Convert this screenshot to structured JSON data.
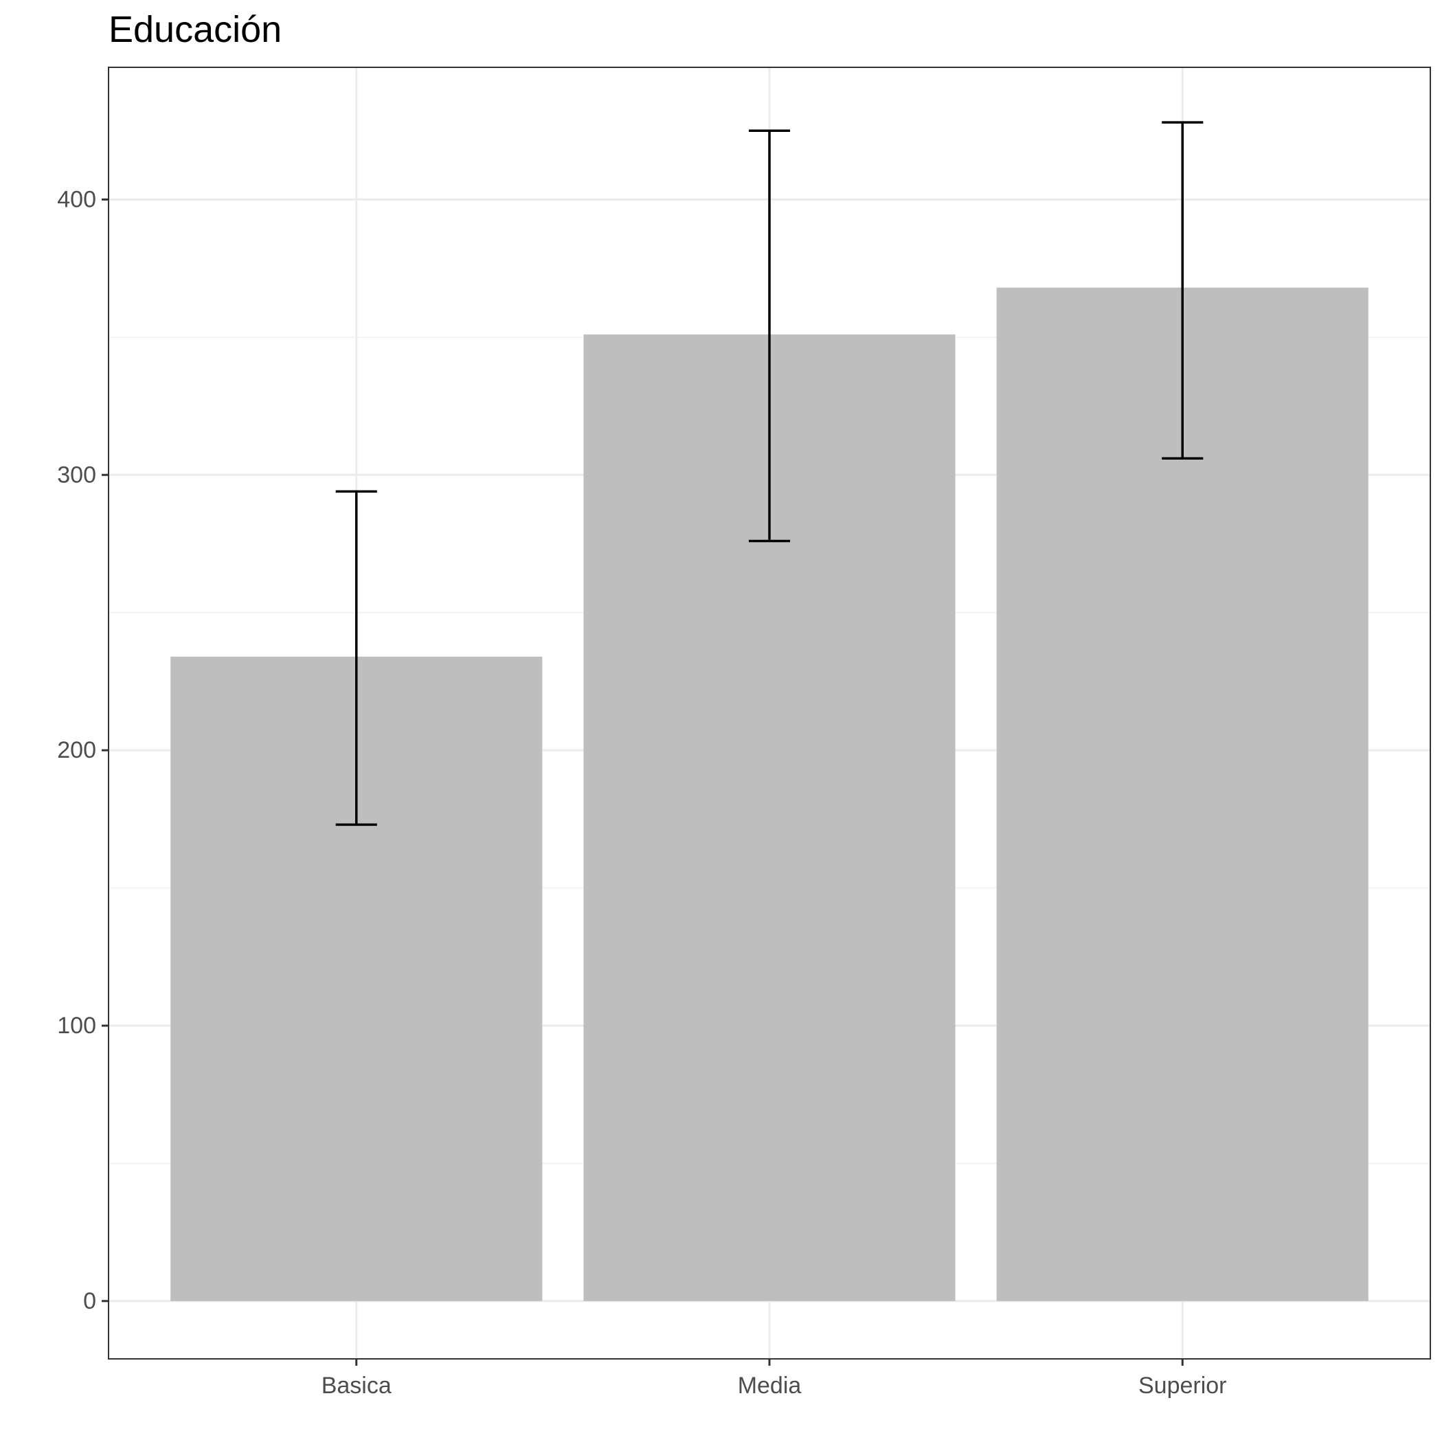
{
  "chart_data": {
    "type": "bar",
    "title": "Educación",
    "xlabel": "",
    "ylabel": "",
    "categories": [
      "Basica",
      "Media",
      "Superior"
    ],
    "values": [
      234,
      351,
      368
    ],
    "error_low": [
      173,
      276,
      306
    ],
    "error_high": [
      294,
      425,
      428
    ],
    "ylim": [
      -21,
      448
    ],
    "yticks": [
      0,
      100,
      200,
      300,
      400
    ],
    "ytick_labels": [
      "0",
      "100",
      "200",
      "300",
      "400"
    ],
    "grid": true,
    "legend": "none",
    "colors": {
      "bar": "#bebebe",
      "errorbar": "#000000",
      "grid_major": "#ebebeb",
      "grid_minor": "#f2f2f2",
      "panel_border": "#333333",
      "tick_label": "#4d4d4d"
    }
  }
}
